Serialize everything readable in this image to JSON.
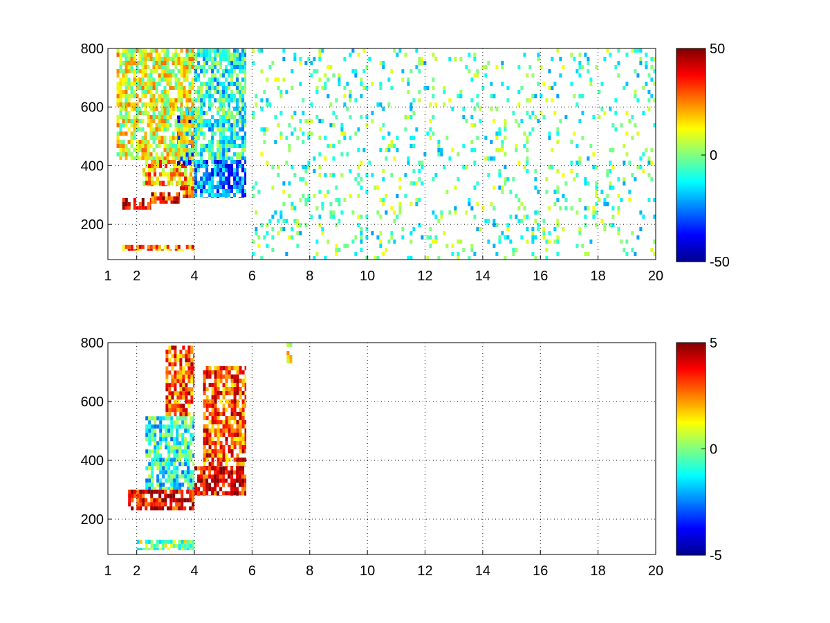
{
  "chart_data": [
    {
      "type": "heatmap",
      "title": "",
      "xlabel": "",
      "ylabel": "",
      "xlim": [
        1,
        20
      ],
      "ylim": [
        80,
        800
      ],
      "x_ticks": [
        "1",
        "2",
        "4",
        "6",
        "8",
        "10",
        "12",
        "14",
        "16",
        "18",
        "20"
      ],
      "y_ticks": [
        "200",
        "400",
        "600",
        "800"
      ],
      "grid": true,
      "colormap": "jet",
      "clim": [
        -50,
        50
      ],
      "colorbar_ticks": [
        "50",
        "0",
        "-50"
      ],
      "regions": [
        {
          "x": [
            1.5,
            2.5
          ],
          "y": [
            250,
            290
          ],
          "value": 40
        },
        {
          "x": [
            2.5,
            3.5
          ],
          "y": [
            270,
            310
          ],
          "value": 35
        },
        {
          "x": [
            3.5,
            4.0
          ],
          "y": [
            290,
            330
          ],
          "value": 30
        },
        {
          "x": [
            2.2,
            4.0
          ],
          "y": [
            330,
            420
          ],
          "value": 20
        },
        {
          "x": [
            3.4,
            4.0
          ],
          "y": [
            400,
            600
          ],
          "value": -30
        },
        {
          "x": [
            4.0,
            5.8
          ],
          "y": [
            290,
            420
          ],
          "value": -25
        },
        {
          "x": [
            1.3,
            4.0
          ],
          "y": [
            420,
            800
          ],
          "value": 10
        },
        {
          "x": [
            1.5,
            4.0
          ],
          "y": [
            110,
            130
          ],
          "value": 25
        },
        {
          "x": [
            4.0,
            5.8
          ],
          "y": [
            420,
            800
          ],
          "value": -10
        },
        {
          "x": [
            6.0,
            20.0
          ],
          "y": [
            80,
            800
          ],
          "value": -5
        }
      ]
    },
    {
      "type": "heatmap",
      "title": "",
      "xlabel": "",
      "ylabel": "",
      "xlim": [
        1,
        20
      ],
      "ylim": [
        80,
        800
      ],
      "x_ticks": [
        "1",
        "2",
        "4",
        "6",
        "8",
        "10",
        "12",
        "14",
        "16",
        "18",
        "20"
      ],
      "y_ticks": [
        "200",
        "400",
        "600",
        "800"
      ],
      "grid": true,
      "colormap": "jet",
      "clim": [
        -5,
        5
      ],
      "colorbar_ticks": [
        "5",
        "0",
        "-5"
      ],
      "regions": [
        {
          "x": [
            1.7,
            4.0
          ],
          "y": [
            230,
            300
          ],
          "value": 4
        },
        {
          "x": [
            4.0,
            5.8
          ],
          "y": [
            280,
            380
          ],
          "value": 4
        },
        {
          "x": [
            2.3,
            4.0
          ],
          "y": [
            300,
            550
          ],
          "value": -1
        },
        {
          "x": [
            3.0,
            4.0
          ],
          "y": [
            550,
            790
          ],
          "value": 3
        },
        {
          "x": [
            4.3,
            5.8
          ],
          "y": [
            380,
            720
          ],
          "value": 3
        },
        {
          "x": [
            2.0,
            4.0
          ],
          "y": [
            95,
            130
          ],
          "value": 0
        },
        {
          "x": [
            7.2,
            7.4
          ],
          "y": [
            730,
            800
          ],
          "value": 1
        }
      ]
    }
  ]
}
